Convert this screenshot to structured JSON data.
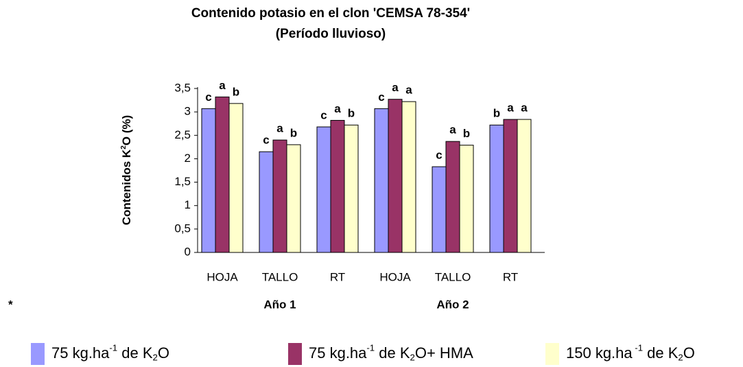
{
  "chart_data": {
    "type": "bar",
    "title": "Contenido potasio en el clon 'CEMSA 78-354'",
    "subtitle": "(Período lluvioso)",
    "y_label": [
      "Contenidos K",
      "2",
      "O   (%)"
    ],
    "categories": [
      "HOJA",
      "TALLO",
      "RT",
      "HOJA",
      "TALLO",
      "RT"
    ],
    "groups": [
      "Año 1",
      "Año 2"
    ],
    "note": "*",
    "series": [
      {
        "name": [
          "75 kg.ha",
          "-1",
          " de K",
          "2",
          "O"
        ],
        "color": "#9999ff",
        "values": [
          3.07,
          2.15,
          2.68,
          3.07,
          1.83,
          2.72
        ],
        "letters": [
          "c",
          "c",
          "c",
          "c",
          "c",
          "b"
        ]
      },
      {
        "name": [
          "75 kg.ha",
          "-1",
          " de K",
          "2",
          "O+ HMA"
        ],
        "color": "#993366",
        "values": [
          3.32,
          2.4,
          2.82,
          3.27,
          2.37,
          2.84
        ],
        "letters": [
          "a",
          "a",
          "a",
          "a",
          "a",
          "a"
        ]
      },
      {
        "name": [
          "150 kg.ha",
          " -1",
          " de K",
          "2",
          "O"
        ],
        "color": "#ffffcc",
        "values": [
          3.18,
          2.3,
          2.72,
          3.22,
          2.29,
          2.84
        ],
        "letters": [
          "b",
          "b",
          "b",
          "a",
          "b",
          "a"
        ]
      }
    ],
    "ylim": [
      0,
      3.5
    ],
    "yticks": [
      0,
      {
        "value": 0.5,
        "label": "0,5"
      },
      1,
      {
        "value": 1.5,
        "label": "1,5"
      },
      2,
      {
        "value": 2.5,
        "label": "2,5"
      },
      3,
      {
        "value": 3.5,
        "label": "3,5"
      }
    ],
    "grid": false
  }
}
